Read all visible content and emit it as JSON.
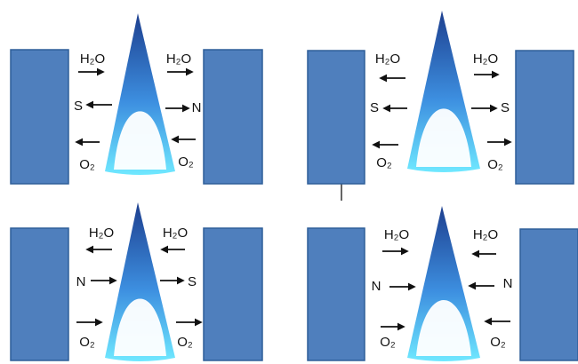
{
  "panels": [
    {
      "top_left": "H₂O",
      "top_right": "H₂O",
      "mid_left": "S",
      "mid_right": "N",
      "bottom_left": "O₂",
      "bottom_right": "O₂"
    },
    {
      "top_left": "H₂O",
      "top_right": "H₂O",
      "mid_left": "S",
      "mid_right": "S",
      "bottom_left": "O₂",
      "bottom_right": "O₂"
    },
    {
      "top_left": "H₂O",
      "top_right": "H₂O",
      "mid_left": "N",
      "mid_right": "S",
      "bottom_left": "O₂",
      "bottom_right": "O₂"
    },
    {
      "top_left": "H₂O",
      "top_right": "H₂O",
      "mid_left": "N",
      "mid_right": "N",
      "bottom_left": "O₂",
      "bottom_right": "O₂"
    }
  ]
}
